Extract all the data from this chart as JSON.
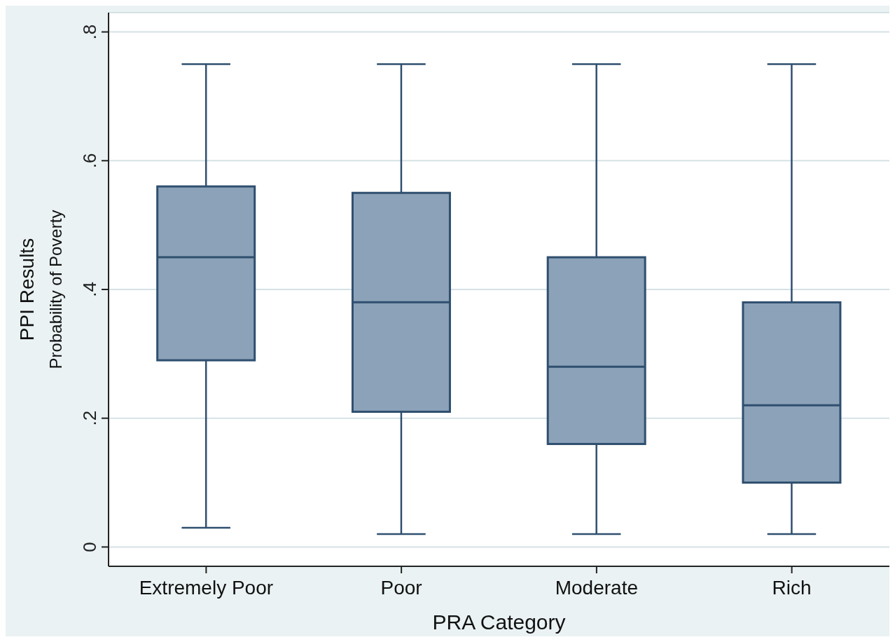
{
  "chart_data": {
    "type": "box",
    "categories": [
      "Extremely Poor",
      "Poor",
      "Moderate",
      "Rich"
    ],
    "xlabel": "PRA Category",
    "ylabel": "PPI Results\nProbability of Poverty",
    "color": "#8ca2b8",
    "boxes": [
      {
        "low": 0.03,
        "q1": 0.29,
        "median": 0.45,
        "q3": 0.56,
        "high": 0.75
      },
      {
        "low": 0.02,
        "q1": 0.21,
        "median": 0.38,
        "q3": 0.55,
        "high": 0.75
      },
      {
        "low": 0.02,
        "q1": 0.16,
        "median": 0.28,
        "q3": 0.45,
        "high": 0.75
      },
      {
        "low": 0.02,
        "q1": 0.1,
        "median": 0.22,
        "q3": 0.38,
        "high": 0.75
      }
    ],
    "ylim": [
      -0.03,
      0.83
    ],
    "yticks": [
      {
        "value": 0,
        "label": "0"
      },
      {
        "value": 0.2,
        "label": ".2"
      },
      {
        "value": 0.4,
        "label": ".4"
      },
      {
        "value": 0.6,
        "label": ".6"
      },
      {
        "value": 0.8,
        "label": ".8"
      }
    ],
    "grid": "y"
  }
}
